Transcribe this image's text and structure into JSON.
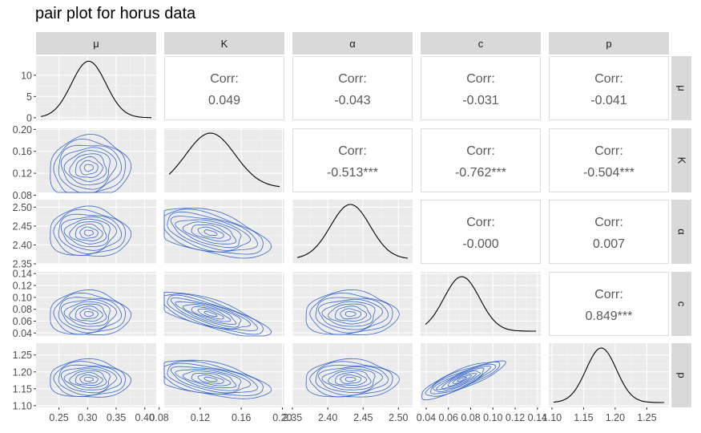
{
  "chart_data": {
    "type": "pairplot",
    "title": "pair plot for horus data",
    "variables": [
      "μ",
      "K",
      "α",
      "c",
      "p"
    ],
    "ranges": [
      [
        0.21,
        0.42
      ],
      [
        0.085,
        0.202
      ],
      [
        2.35,
        2.52
      ],
      [
        0.035,
        0.143
      ],
      [
        1.095,
        1.285
      ]
    ],
    "ticks": [
      [
        0.25,
        0.3,
        0.35,
        0.4
      ],
      [
        0.08,
        0.12,
        0.16,
        0.2
      ],
      [
        2.35,
        2.4,
        2.45,
        2.5
      ],
      [
        0.04,
        0.06,
        0.08,
        0.1,
        0.12,
        0.14
      ],
      [
        1.1,
        1.15,
        1.2,
        1.25
      ]
    ],
    "tick_labels": [
      [
        "0.25",
        "0.30",
        "0.35",
        "0.40"
      ],
      [
        "0.08",
        "0.12",
        "0.16",
        "0.20"
      ],
      [
        "2.35",
        "2.40",
        "2.45",
        "2.50"
      ],
      [
        "0.04",
        "0.06",
        "0.08",
        "0.10",
        "0.12",
        "0.14"
      ],
      [
        "1.10",
        "1.15",
        "1.20",
        "1.25"
      ]
    ],
    "x_tick_labels": [
      [
        "0.25",
        "0.30",
        "0.35",
        "0.40"
      ],
      [
        "0.08",
        "0.12",
        "0.16",
        "0.20"
      ],
      [
        "2.35",
        "2.40",
        "2.45",
        "2.50"
      ],
      [
        "0.04",
        "0.06",
        "0.08",
        "0.10",
        "0.12",
        "0.14"
      ],
      [
        "1.10",
        "1.15",
        "1.20",
        "1.25"
      ]
    ],
    "y_tick_labels": [
      [
        "0",
        "5",
        "10"
      ],
      [
        "0.08",
        "0.12",
        "0.16",
        "0.20"
      ],
      [
        "2.35",
        "2.40",
        "2.45",
        "2.50"
      ],
      [
        "0.04",
        "0.06",
        "0.08",
        "0.10",
        "0.12",
        "0.14"
      ],
      [
        "1.10",
        "1.15",
        "1.20",
        "1.25"
      ]
    ],
    "y_top_ticks": [
      0,
      5,
      10
    ],
    "y_top_range": [
      -0.6,
      14.5
    ],
    "means": [
      0.302,
      0.13,
      2.432,
      0.072,
      1.178
    ],
    "sds": [
      0.03,
      0.024,
      0.028,
      0.016,
      0.024
    ],
    "corr_label": "Corr:",
    "correlations": {
      "0-1": "0.049",
      "0-2": "-0.043",
      "0-3": "-0.031",
      "0-4": "-0.041",
      "1-2": "-0.513***",
      "1-3": "-0.762***",
      "1-4": "-0.504***",
      "2-3": "-0.000",
      "2-4": "0.007",
      "3-4": "0.849***"
    },
    "corr_values": {
      "0-1": 0.049,
      "0-2": -0.043,
      "0-3": -0.031,
      "0-4": -0.041,
      "1-2": -0.513,
      "1-3": -0.762,
      "1-4": -0.504,
      "2-3": 0.0,
      "2-4": 0.007,
      "3-4": 0.849
    },
    "contour_levels": 9,
    "colors": {
      "panel_bg": "#ebebeb",
      "grid_major": "#ffffff",
      "strip_bg": "#d9d9d9",
      "contour": "#3366cc",
      "density": "#000000",
      "corr_text": "#595959",
      "axis_text": "#4d4d4d",
      "border": "#dcdcdc"
    }
  }
}
